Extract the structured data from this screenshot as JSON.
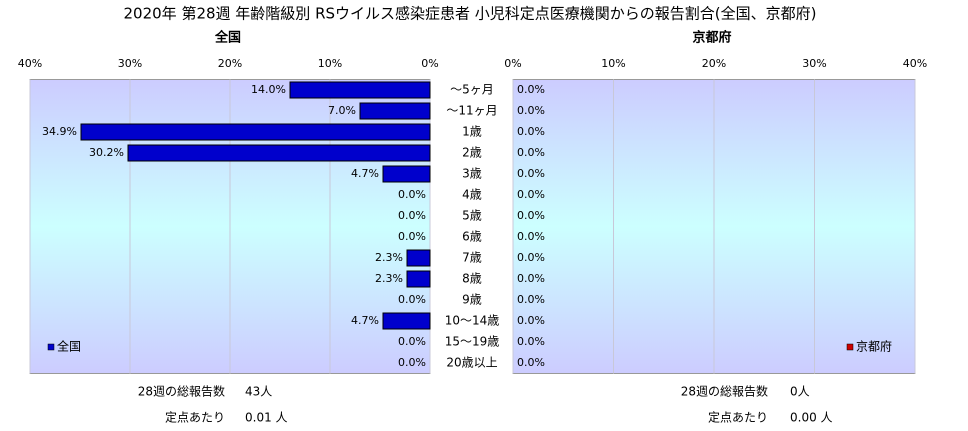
{
  "title": "2020年 第28週 年齢階級別 RSウイルス感染症患者 小児科定点医療機関からの報告割合(全国、京都府)",
  "chart_data": [
    {
      "type": "bar",
      "subtitle": "全国",
      "categories": [
        "～5ヶ月",
        "～11ヶ月",
        "1歳",
        "2歳",
        "3歳",
        "4歳",
        "5歳",
        "6歳",
        "7歳",
        "8歳",
        "9歳",
        "10～14歳",
        "15～19歳",
        "20歳以上"
      ],
      "series": [
        {
          "name": "全国",
          "color": "#0000cc",
          "values": [
            14.0,
            7.0,
            34.9,
            30.2,
            4.7,
            0,
            0,
            0,
            2.3,
            2.3,
            0,
            4.7,
            0,
            0
          ],
          "value_labels": [
            "14.0%",
            "7.0%",
            "34.9%",
            "30.2%",
            "4.7%",
            "0.0%",
            "0.0%",
            "0.0%",
            "2.3%",
            "2.3%",
            "0.0%",
            "4.7%",
            "0.0%",
            "0.0%"
          ]
        }
      ],
      "xlim": [
        40,
        0
      ],
      "xticks": [
        {
          "value": 40,
          "label": "40%"
        },
        {
          "value": 30,
          "label": "30%"
        },
        {
          "value": 20,
          "label": "20%"
        },
        {
          "value": 10,
          "label": "10%"
        },
        {
          "value": 0,
          "label": "0%"
        }
      ],
      "grid": true,
      "legend": "lower left",
      "footer": [
        {
          "label": "28週の総報告数",
          "value": "43人"
        },
        {
          "label": "定点あたり",
          "value": "0.01 人"
        }
      ]
    },
    {
      "type": "bar",
      "subtitle": "京都府",
      "series": [
        {
          "name": "京都府",
          "color": "#cc0000",
          "values": [
            0,
            0,
            0,
            0,
            0,
            0,
            0,
            0,
            0,
            0,
            0,
            0,
            0,
            0
          ],
          "value_labels": [
            "0.0%",
            "0.0%",
            "0.0%",
            "0.0%",
            "0.0%",
            "0.0%",
            "0.0%",
            "0.0%",
            "0.0%",
            "0.0%",
            "0.0%",
            "0.0%",
            "0.0%",
            "0.0%"
          ]
        }
      ],
      "xlim": [
        0,
        40
      ],
      "xticks": [
        {
          "value": 0,
          "label": "0%"
        },
        {
          "value": 10,
          "label": "10%"
        },
        {
          "value": 20,
          "label": "20%"
        },
        {
          "value": 30,
          "label": "30%"
        },
        {
          "value": 40,
          "label": "40%"
        }
      ],
      "grid": true,
      "legend": "lower right",
      "footer": [
        {
          "label": "28週の総報告数",
          "value": "0人"
        },
        {
          "label": "定点あたり",
          "value": "0.00 人"
        }
      ]
    }
  ]
}
